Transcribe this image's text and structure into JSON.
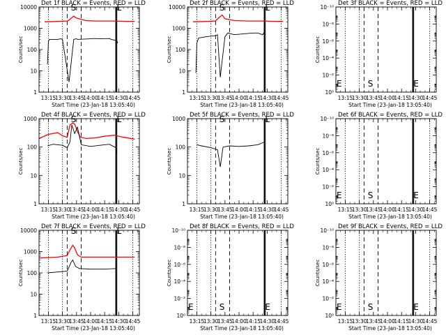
{
  "figure": {
    "xlabel": "Start Time (23-Jan-18 13:05:40)",
    "ylabel": "Counts/sec",
    "xticks": [
      "13:15",
      "13:30",
      "13:45",
      "14:00",
      "14:15",
      "14:30",
      "14:45"
    ]
  },
  "chart_data": [
    {
      "type": "line",
      "title": "Det 1f BLACK = Events, RED = LLD",
      "ylabel": "Counts/sec",
      "xlabel": "Start Time (23-Jan-18 13:05:40)",
      "yscale": "log",
      "ylim": [
        1,
        10000
      ],
      "yticks": [
        "1",
        "10",
        "100",
        "1000",
        "10000"
      ],
      "markers": [
        "S",
        "E"
      ],
      "series": [
        {
          "name": "LLD",
          "color": "#ff0000",
          "x": [
            "13:11",
            "13:25",
            "13:35",
            "13:37",
            "13:40",
            "13:42",
            "13:45",
            "13:55",
            "14:05",
            "14:10",
            "14:25",
            "14:40",
            "14:47"
          ],
          "y": [
            2000,
            2100,
            2200,
            2400,
            3200,
            3700,
            3000,
            2300,
            2200,
            2200,
            2200,
            2100,
            2100
          ]
        },
        {
          "name": "Events",
          "color": "#000000",
          "x": [
            "13:14",
            "13:15",
            "13:16",
            "13:25",
            "13:28",
            "13:30",
            "13:37",
            "13:42",
            "13:45",
            "13:46",
            "14:00",
            "14:05",
            "14:10",
            "14:20",
            "14:22",
            "14:28",
            "14:29"
          ],
          "y": [
            20,
            250,
            300,
            300,
            320,
            300,
            3,
            300,
            320,
            300,
            320,
            330,
            320,
            330,
            300,
            260,
            200
          ]
        }
      ]
    },
    {
      "type": "line",
      "title": "Det 2f BLACK = Events, RED = LLD",
      "ylabel": "Counts/sec",
      "xlabel": "Start Time (23-Jan-18 13:05:40)",
      "yscale": "log",
      "ylim": [
        1,
        10000
      ],
      "yticks": [
        "1",
        "10",
        "100",
        "1000",
        "10000"
      ],
      "markers": [
        "S",
        "E"
      ],
      "series": [
        {
          "name": "LLD",
          "color": "#ff0000",
          "x": [
            "13:11",
            "13:25",
            "13:35",
            "13:38",
            "13:42",
            "13:45",
            "13:55",
            "14:10",
            "14:25",
            "14:40",
            "14:47"
          ],
          "y": [
            2000,
            2100,
            2200,
            3000,
            4200,
            2800,
            2300,
            2200,
            2200,
            2100,
            2100
          ]
        },
        {
          "name": "Events",
          "color": "#000000",
          "x": [
            "13:14",
            "13:15",
            "13:17",
            "13:25",
            "13:35",
            "13:37",
            "13:40",
            "13:45",
            "13:48",
            "13:55",
            "14:05",
            "14:15",
            "14:20",
            "14:25",
            "14:27"
          ],
          "y": [
            8,
            200,
            350,
            400,
            450,
            500,
            5,
            400,
            600,
            500,
            550,
            600,
            600,
            500,
            650
          ]
        }
      ]
    },
    {
      "type": "line",
      "title": "Det 3f BLACK = Events, RED = LLD",
      "ylabel": "Counts/sec",
      "xlabel": "Start Time (23-Jan-18 13:05:40)",
      "yscale": "log",
      "ylim": [
        1,
        1e-10
      ],
      "yticks": [
        "10⁰",
        "10⁻²",
        "10⁻⁴",
        "10⁻⁶",
        "10⁻⁸",
        "10⁻¹⁰"
      ],
      "markers": [
        "E",
        "S",
        "E"
      ],
      "series": []
    },
    {
      "type": "line",
      "title": "Det 4f BLACK = Events, RED = LLD",
      "ylabel": "Counts/sec",
      "xlabel": "Start Time (23-Jan-18 13:05:40)",
      "yscale": "log",
      "ylim": [
        1,
        1000
      ],
      "yticks": [
        "1",
        "10",
        "100",
        "1000"
      ],
      "markers": [
        "S",
        "E"
      ],
      "series": [
        {
          "name": "LLD",
          "color": "#ff0000",
          "x": [
            "13:05",
            "13:15",
            "13:25",
            "13:30",
            "13:35",
            "13:38",
            "13:41",
            "13:43",
            "13:46",
            "13:49",
            "13:55",
            "14:05",
            "14:15",
            "14:25",
            "14:35",
            "14:47"
          ],
          "y": [
            200,
            280,
            320,
            250,
            220,
            600,
            700,
            650,
            350,
            220,
            200,
            210,
            240,
            260,
            220,
            190
          ]
        },
        {
          "name": "Events",
          "color": "#000000",
          "x": [
            "13:14",
            "13:20",
            "13:30",
            "13:35",
            "13:38",
            "13:40",
            "13:43",
            "13:46",
            "13:50",
            "14:00",
            "14:10",
            "14:20",
            "14:27",
            "14:28"
          ],
          "y": [
            110,
            125,
            115,
            95,
            150,
            600,
            300,
            500,
            120,
            105,
            115,
            125,
            95,
            60
          ]
        }
      ]
    },
    {
      "type": "line",
      "title": "Det 5f BLACK = Events, RED = LLD",
      "ylabel": "Counts/sec",
      "xlabel": "Start Time (23-Jan-18 13:05:40)",
      "yscale": "log",
      "ylim": [
        1,
        1000
      ],
      "yticks": [
        "1",
        "10",
        "100",
        "1000"
      ],
      "markers": [
        "S",
        "E"
      ],
      "series": [
        {
          "name": "Events",
          "color": "#000000",
          "x": [
            "13:15",
            "13:20",
            "13:30",
            "13:37",
            "13:40",
            "13:43",
            "13:50",
            "14:00",
            "14:10",
            "14:20",
            "14:27"
          ],
          "y": [
            120,
            110,
            95,
            80,
            20,
            100,
            110,
            105,
            110,
            120,
            150
          ]
        }
      ]
    },
    {
      "type": "line",
      "title": "Det 6f BLACK = Events, RED = LLD",
      "ylabel": "Counts/sec",
      "xlabel": "Start Time (23-Jan-18 13:05:40)",
      "yscale": "log",
      "ylim": [
        1,
        1e-10
      ],
      "yticks": [
        "10⁰",
        "10⁻²",
        "10⁻⁴",
        "10⁻⁶",
        "10⁻⁸",
        "10⁻¹⁰"
      ],
      "markers": [
        "E",
        "S",
        "E"
      ],
      "series": []
    },
    {
      "type": "line",
      "title": "Det 7f BLACK = Events, RED = LLD",
      "ylabel": "Counts/sec",
      "xlabel": "Start Time (23-Jan-18 13:05:40)",
      "yscale": "log",
      "ylim": [
        1,
        10000
      ],
      "yticks": [
        "1",
        "10",
        "100",
        "1000",
        "10000"
      ],
      "markers": [
        "S",
        "E"
      ],
      "series": [
        {
          "name": "LLD",
          "color": "#ff0000",
          "x": [
            "13:05",
            "13:25",
            "13:35",
            "13:38",
            "13:41",
            "13:43",
            "13:46",
            "13:50",
            "14:05",
            "14:25",
            "14:47"
          ],
          "y": [
            500,
            550,
            650,
            1200,
            2000,
            1500,
            700,
            550,
            550,
            550,
            550
          ]
        },
        {
          "name": "Events",
          "color": "#000000",
          "x": [
            "13:14",
            "13:25",
            "13:35",
            "13:39",
            "13:41",
            "13:44",
            "13:48",
            "14:00",
            "14:15",
            "14:27"
          ],
          "y": [
            100,
            110,
            120,
            300,
            400,
            200,
            160,
            150,
            150,
            160
          ]
        }
      ]
    },
    {
      "type": "line",
      "title": "Det 8f BLACK = Events, RED = LLD",
      "ylabel": "Counts/sec",
      "xlabel": "Start Time (23-Jan-18 13:05:40)",
      "yscale": "log",
      "ylim": [
        1,
        1e-10
      ],
      "yticks": [
        "10⁰",
        "10⁻²",
        "10⁻⁴",
        "10⁻⁶",
        "10⁻⁸",
        "10⁻¹⁰"
      ],
      "markers": [
        "E",
        "S",
        "E"
      ],
      "series": []
    },
    {
      "type": "line",
      "title": "Det 9f BLACK = Events, RED = LLD",
      "ylabel": "Counts/sec",
      "xlabel": "Start Time (23-Jan-18 13:05:40)",
      "yscale": "log",
      "ylim": [
        1,
        1e-10
      ],
      "yticks": [
        "10⁰",
        "10⁻²",
        "10⁻⁴",
        "10⁻⁶",
        "10⁻⁸",
        "10⁻¹⁰"
      ],
      "markers": [
        "E",
        "S",
        "E"
      ],
      "series": []
    }
  ]
}
